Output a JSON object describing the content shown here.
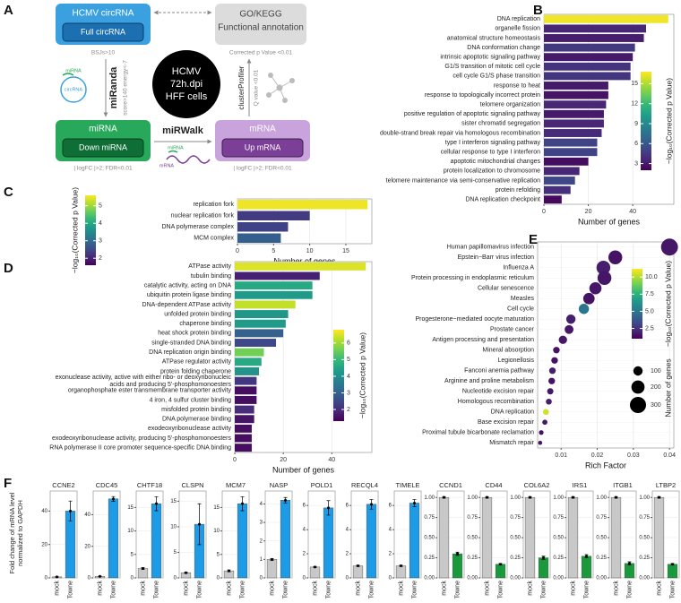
{
  "diagram": {
    "panel": "A",
    "nodes": [
      {
        "title": "HCMV circRNA",
        "subtitle": "Full circRNA",
        "note": "BSJs>10"
      },
      {
        "title": "GO/KEGG",
        "subtitle": "Functional annotation",
        "note": "Corrected p Value <0.01"
      },
      {
        "title": "miRNA",
        "subtitle": "Down miRNA",
        "note": "| logFC |>2; FDR<0.01"
      },
      {
        "title": "mRNA",
        "subtitle": "Up mRNA",
        "note": "| logFC |>2; FDR<0.01"
      }
    ],
    "center": [
      "HCMV",
      "72h.dpi",
      "HFF cells"
    ],
    "edges": [
      {
        "label": "miRanda",
        "note": "score>140 energy<-7"
      },
      {
        "label": "clusterProfiler",
        "note": "Q value <0.01"
      },
      {
        "label": "miRWalk"
      }
    ],
    "icons": [
      "miRNA",
      "circRNA",
      "miRNA",
      "mRNA"
    ]
  },
  "panel_F": {
    "label": "F",
    "ylabel": [
      "Fold change of mRNA level",
      "normalized to GAPDH"
    ]
  },
  "chart_data": [
    {
      "type": "bar",
      "orientation": "horizontal",
      "panel": "B",
      "categories": [
        "DNA replication",
        "organelle fission",
        "anatomical structure homeostasis",
        "DNA conformation change",
        "intrinsic apoptotic signaling pathway",
        "G1/S transition of mitotic cell cycle",
        "cell cycle G1/S phase transition",
        "response to heat",
        "response to topologically incorrect protein",
        "telomere organization",
        "positive regulation of apoptotic signaling pathway",
        "sister chromatid segregation",
        "double-strand break repair via homologous recombination",
        "type I interferon signaling pathway",
        "cellular response to type I interferon",
        "apoptotic mitochondrial changes",
        "protein localization to chromosome",
        "telomere maintenance via semi-conservative replication",
        "protein refolding",
        "DNA replication checkpoint"
      ],
      "values": [
        56,
        46,
        45,
        41,
        40,
        39,
        39,
        29,
        29,
        28,
        27,
        27,
        26,
        24,
        24,
        20,
        16,
        14,
        12,
        8
      ],
      "color_values": [
        16.5,
        3.6,
        3.2,
        4.5,
        3.0,
        4.2,
        4.3,
        3.0,
        2.8,
        3.6,
        3.0,
        3.6,
        3.8,
        5.0,
        5.0,
        2.5,
        3.6,
        5.2,
        4.0,
        2.4
      ],
      "xlabel": "Number of genes",
      "xlim": [
        0,
        58.5
      ],
      "xticks": [
        0,
        20,
        40
      ],
      "grid": true,
      "colorbar": {
        "label": "−log₁₀(Corrected p Value)",
        "lim": [
          2,
          16.8
        ],
        "ticks": [
          3,
          6,
          9,
          12,
          15
        ]
      }
    },
    {
      "type": "bar",
      "orientation": "horizontal",
      "panel": "C",
      "categories": [
        "replication fork",
        "nuclear replication fork",
        "DNA polymerase complex",
        "MCM complex"
      ],
      "values": [
        18,
        10,
        7,
        6
      ],
      "color_values": [
        5.5,
        2.3,
        2.4,
        2.8
      ],
      "xlabel": "Number of genes",
      "xlim": [
        0,
        18.6
      ],
      "xticks": [
        0,
        5,
        10,
        15
      ],
      "grid": true,
      "colorbar": {
        "label": "−log₁₀(Corrected p Value)",
        "lim": [
          1.6,
          5.6
        ],
        "ticks": [
          2,
          3,
          4,
          5
        ]
      }
    },
    {
      "type": "bar",
      "orientation": "horizontal",
      "panel": "D",
      "categories": [
        "ATPase activity",
        "tubulin binding",
        "catalytic activity, acting on DNA",
        "ubiquitin protein ligase binding",
        "DNA-dependent ATPase activity",
        "unfolded protein binding",
        "chaperone binding",
        "heat shock protein binding",
        "single-stranded DNA binding",
        "DNA replication origin binding",
        "ATPase regulator activity",
        "protein folding chaperone",
        "exonuclease activity, active with either ribo- or deoxyribonucleic acids and producing 5'-phosphomonoesters",
        "organophosphate ester transmembrane transporter activity",
        "4 iron, 4 sulfur cluster binding",
        "misfolded protein binding",
        "DNA polymerase binding",
        "exodeoxyribonuclease activity",
        "exodeoxyribonuclease activity, producing 5'-phosphomonoesters",
        "RNA polymerase II core promoter sequence-specific DNA binding"
      ],
      "values": [
        54,
        35,
        32,
        32,
        25,
        22,
        21,
        20,
        17,
        12,
        11,
        10,
        9,
        9,
        9,
        8,
        8,
        7,
        7,
        7
      ],
      "color_values": [
        6.5,
        1.8,
        4.6,
        4.3,
        6.3,
        4.2,
        4.3,
        3.0,
        2.5,
        5.6,
        4.6,
        4.1,
        2.2,
        1.5,
        1.5,
        2.0,
        1.6,
        1.5,
        1.5,
        1.5
      ],
      "xlabel": "Number of genes",
      "xlim": [
        0,
        56.5
      ],
      "xticks": [
        0,
        20,
        40
      ],
      "grid": true,
      "colorbar": {
        "label": "−log₁₀(Corrected p Value)",
        "lim": [
          1.3,
          6.8
        ],
        "ticks": [
          2,
          3,
          4,
          5,
          6
        ]
      }
    },
    {
      "type": "scatter",
      "panel": "E",
      "categories": [
        "Human papillomavirus infection",
        "Epstein−Barr virus infection",
        "Influenza A",
        "Protein processing in endoplasmic reticulum",
        "Cellular senescence",
        "Measles",
        "Cell cycle",
        "Progesterone−mediated oocyte maturation",
        "Prostate cancer",
        "Antigen processing and presentation",
        "Mineral absorption",
        "Legionellosis",
        "Fanconi anemia pathway",
        "Arginine and proline metabolism",
        "Nucleotide excision repair",
        "Homologous recombination",
        "DNA replication",
        "Base excision repair",
        "Proximal tubule bicarbonate reclamation",
        "Mismatch repair"
      ],
      "values": [
        0.04,
        0.025,
        0.0217,
        0.022,
        0.0195,
        0.0177,
        0.0163,
        0.0127,
        0.0122,
        0.0105,
        0.0087,
        0.0082,
        0.0076,
        0.0074,
        0.007,
        0.0066,
        0.0058,
        0.0055,
        0.0045,
        0.0042
      ],
      "sizes": [
        330,
        220,
        220,
        220,
        170,
        150,
        120,
        100,
        90,
        80,
        50,
        50,
        50,
        50,
        45,
        40,
        40,
        30,
        25,
        20
      ],
      "color_values": [
        1.6,
        1.5,
        1.8,
        1.6,
        1.6,
        1.5,
        5.0,
        1.8,
        1.6,
        1.6,
        1.5,
        1.5,
        1.8,
        1.5,
        1.6,
        1.8,
        10.5,
        1.6,
        1.5,
        1.6
      ],
      "xlabel": "Rich Factor",
      "xlim": [
        0.0035,
        0.0412
      ],
      "xticks": [
        0.01,
        0.02,
        0.03,
        0.04
      ],
      "grid": true,
      "colorbar": {
        "label": "−log₁₀(Corrected p Value)",
        "lim": [
          1,
          11.2
        ],
        "ticks": [
          2.5,
          {
            "value": 5,
            "label": "5.0"
          },
          7.5,
          {
            "value": 10,
            "label": "10.0"
          }
        ]
      },
      "size_legend": {
        "title": "Number of genes",
        "values": [
          100,
          200,
          300
        ]
      }
    },
    {
      "type": "bar",
      "title": "CCNE2",
      "categories": [
        "mock",
        "Towne"
      ],
      "values": [
        0.6,
        40
      ],
      "errors": [
        0.1,
        6
      ],
      "colors": [
        "#c8c8c8",
        "#1e9be6"
      ],
      "ylim": [
        0,
        52
      ],
      "yticks": [
        0,
        20,
        40
      ]
    },
    {
      "type": "bar",
      "title": "CDC45",
      "categories": [
        "mock",
        "Towne"
      ],
      "values": [
        1,
        50
      ],
      "errors": [
        0.1,
        1.5
      ],
      "colors": [
        "#c8c8c8",
        "#1e9be6"
      ],
      "ylim": [
        0,
        55
      ],
      "yticks": [
        0,
        20,
        40
      ]
    },
    {
      "type": "bar",
      "title": "CHTF18",
      "categories": [
        "mock",
        "Towne"
      ],
      "values": [
        2,
        15.8
      ],
      "errors": [
        0.2,
        1.5
      ],
      "colors": [
        "#c8c8c8",
        "#1e9be6"
      ],
      "ylim": [
        0,
        18.5
      ],
      "yticks": [
        0,
        5,
        10,
        15
      ]
    },
    {
      "type": "bar",
      "title": "CLSPN",
      "categories": [
        "mock",
        "Towne"
      ],
      "values": [
        1,
        10.5
      ],
      "errors": [
        0.1,
        4
      ],
      "colors": [
        "#c8c8c8",
        "#1e9be6"
      ],
      "ylim": [
        0,
        17
      ],
      "yticks": [
        0,
        5,
        10,
        15
      ]
    },
    {
      "type": "bar",
      "title": "MCM7",
      "categories": [
        "mock",
        "Towne"
      ],
      "values": [
        1.5,
        15.8
      ],
      "errors": [
        0.2,
        1.5
      ],
      "colors": [
        "#c8c8c8",
        "#1e9be6"
      ],
      "ylim": [
        0,
        18.5
      ],
      "yticks": [
        0,
        5,
        10,
        15
      ]
    },
    {
      "type": "bar",
      "title": "NASP",
      "categories": [
        "mock",
        "Towne"
      ],
      "values": [
        1,
        4.2
      ],
      "errors": [
        0.05,
        0.15
      ],
      "colors": [
        "#c8c8c8",
        "#1e9be6"
      ],
      "ylim": [
        0,
        4.7
      ],
      "yticks": [
        0,
        1,
        2,
        3,
        4
      ]
    },
    {
      "type": "bar",
      "title": "POLD1",
      "categories": [
        "mock",
        "Towne"
      ],
      "values": [
        0.9,
        5.8
      ],
      "errors": [
        0.05,
        0.6
      ],
      "colors": [
        "#c8c8c8",
        "#1e9be6"
      ],
      "ylim": [
        0,
        7.2
      ],
      "yticks": [
        0,
        2,
        4,
        6
      ]
    },
    {
      "type": "bar",
      "title": "RECQL4",
      "categories": [
        "mock",
        "Towne"
      ],
      "values": [
        1,
        6.1
      ],
      "errors": [
        0.05,
        0.4
      ],
      "colors": [
        "#c8c8c8",
        "#1e9be6"
      ],
      "ylim": [
        0,
        7.2
      ],
      "yticks": [
        0,
        2,
        4,
        6
      ]
    },
    {
      "type": "bar",
      "title": "TIMELE",
      "categories": [
        "mock",
        "Towne"
      ],
      "values": [
        1,
        6.2
      ],
      "errors": [
        0.05,
        0.3
      ],
      "colors": [
        "#c8c8c8",
        "#1e9be6"
      ],
      "ylim": [
        0,
        7.2
      ],
      "yticks": [
        0,
        2,
        4,
        6
      ]
    },
    {
      "type": "bar",
      "title": "CCND1",
      "categories": [
        "mock",
        "Towne"
      ],
      "values": [
        1,
        0.3
      ],
      "errors": [
        0.01,
        0.02
      ],
      "colors": [
        "#c8c8c8",
        "#1a9a3c"
      ],
      "ylim": [
        0,
        1.08
      ],
      "yticks": [
        {
          "value": 0,
          "label": "0.00"
        },
        0.25,
        {
          "value": 0.5,
          "label": "0.50"
        },
        0.75,
        {
          "value": 1,
          "label": "1.00"
        }
      ]
    },
    {
      "type": "bar",
      "title": "CD44",
      "categories": [
        "mock",
        "Towne"
      ],
      "values": [
        1,
        0.17
      ],
      "errors": [
        0.01,
        0.01
      ],
      "colors": [
        "#c8c8c8",
        "#1a9a3c"
      ],
      "ylim": [
        0,
        1.08
      ],
      "yticks": [
        {
          "value": 0,
          "label": "0.00"
        },
        0.25,
        {
          "value": 0.5,
          "label": "0.50"
        },
        0.75,
        {
          "value": 1,
          "label": "1.00"
        }
      ]
    },
    {
      "type": "bar",
      "title": "COL6A2",
      "categories": [
        "mock",
        "Towne"
      ],
      "values": [
        1,
        0.25
      ],
      "errors": [
        0.01,
        0.02
      ],
      "colors": [
        "#c8c8c8",
        "#1a9a3c"
      ],
      "ylim": [
        0,
        1.08
      ],
      "yticks": [
        {
          "value": 0,
          "label": "0.00"
        },
        0.25,
        {
          "value": 0.5,
          "label": "0.50"
        },
        0.75,
        {
          "value": 1,
          "label": "1.00"
        }
      ]
    },
    {
      "type": "bar",
      "title": "IRS1",
      "categories": [
        "mock",
        "Towne"
      ],
      "values": [
        1,
        0.27
      ],
      "errors": [
        0.01,
        0.02
      ],
      "colors": [
        "#c8c8c8",
        "#1a9a3c"
      ],
      "ylim": [
        0,
        1.08
      ],
      "yticks": [
        {
          "value": 0,
          "label": "0.00"
        },
        0.25,
        {
          "value": 0.5,
          "label": "0.50"
        },
        0.75,
        {
          "value": 1,
          "label": "1.00"
        }
      ]
    },
    {
      "type": "bar",
      "title": "ITGB1",
      "categories": [
        "mock",
        "Towne"
      ],
      "values": [
        1,
        0.18
      ],
      "errors": [
        0.01,
        0.02
      ],
      "colors": [
        "#c8c8c8",
        "#1a9a3c"
      ],
      "ylim": [
        0,
        1.08
      ],
      "yticks": [
        {
          "value": 0,
          "label": "0.00"
        },
        0.25,
        {
          "value": 0.5,
          "label": "0.50"
        },
        0.75,
        {
          "value": 1,
          "label": "1.00"
        }
      ]
    },
    {
      "type": "bar",
      "title": "LTBP2",
      "categories": [
        "mock",
        "Towne"
      ],
      "values": [
        1,
        0.17
      ],
      "errors": [
        0.01,
        0.01
      ],
      "colors": [
        "#c8c8c8",
        "#1a9a3c"
      ],
      "ylim": [
        0,
        1.08
      ],
      "yticks": [
        {
          "value": 0,
          "label": "0.00"
        },
        0.25,
        {
          "value": 0.5,
          "label": "0.50"
        },
        0.75,
        {
          "value": 1,
          "label": "1.00"
        }
      ]
    }
  ]
}
